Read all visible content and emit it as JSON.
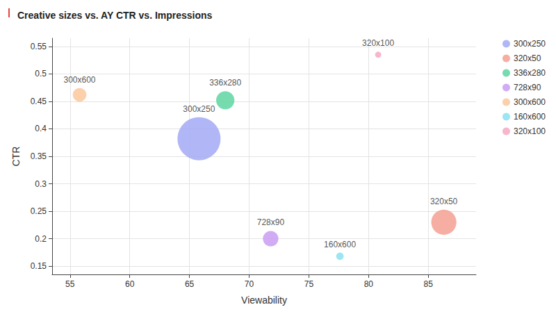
{
  "chart_data": {
    "type": "scatter",
    "title": "Creative sizes vs. AY CTR vs. Impressions",
    "x_label": "Viewability",
    "y_label": "CTR",
    "xlim": [
      53.5,
      89
    ],
    "xticks": [
      55,
      60,
      65,
      70,
      75,
      80,
      85
    ],
    "ylim": [
      0.135,
      0.565
    ],
    "yticks": [
      0.15,
      0.2,
      0.25,
      0.3,
      0.35,
      0.4,
      0.45,
      0.5,
      0.55
    ],
    "grid": true,
    "legend": "right",
    "series": [
      {
        "name": "300x250",
        "color": "#a3aaf5",
        "x": [
          65.8
        ],
        "values": [
          0.382
        ],
        "size": [
          100
        ]
      },
      {
        "name": "320x50",
        "color": "#f5a092",
        "x": [
          86.3
        ],
        "values": [
          0.23
        ],
        "size": [
          34
        ]
      },
      {
        "name": "336x280",
        "color": "#5ed6a2",
        "x": [
          68.0
        ],
        "values": [
          0.452
        ],
        "size": [
          18
        ]
      },
      {
        "name": "728x90",
        "color": "#c99ef2",
        "x": [
          71.8
        ],
        "values": [
          0.2
        ],
        "size": [
          13
        ]
      },
      {
        "name": "300x600",
        "color": "#fcc89c",
        "x": [
          55.8
        ],
        "values": [
          0.462
        ],
        "size": [
          10
        ]
      },
      {
        "name": "160x600",
        "color": "#8be2f2",
        "x": [
          77.6
        ],
        "values": [
          0.168
        ],
        "size": [
          3
        ]
      },
      {
        "name": "320x100",
        "color": "#f7a8c6",
        "x": [
          80.8
        ],
        "values": [
          0.535
        ],
        "size": [
          2
        ]
      }
    ]
  }
}
